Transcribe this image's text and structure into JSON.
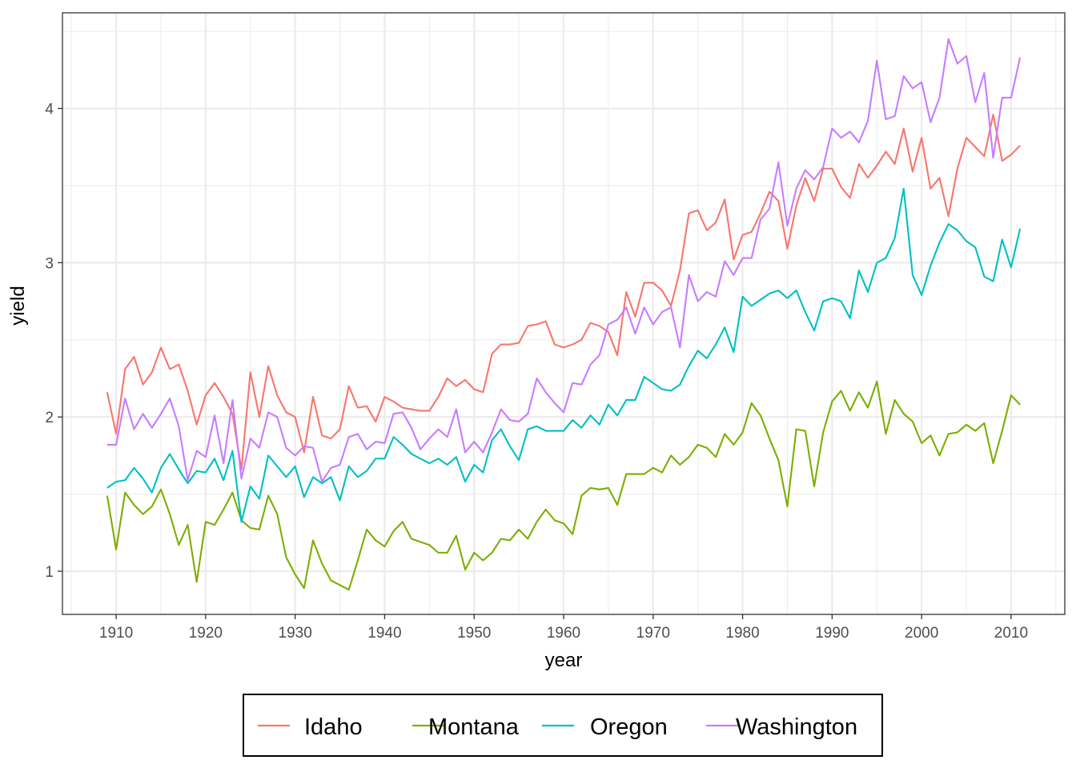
{
  "chart_data": {
    "type": "line",
    "title": "",
    "xlabel": "year",
    "ylabel": "yield",
    "xlim": [
      1904,
      2016
    ],
    "ylim": [
      0.72,
      4.62
    ],
    "x_ticks": [
      1910,
      1920,
      1930,
      1940,
      1950,
      1960,
      1970,
      1980,
      1990,
      2000,
      2010
    ],
    "y_ticks": [
      1,
      2,
      3,
      4
    ],
    "grid": true,
    "legend_position": "bottom",
    "x": [
      1909,
      1910,
      1911,
      1912,
      1913,
      1914,
      1915,
      1916,
      1917,
      1918,
      1919,
      1920,
      1921,
      1922,
      1923,
      1924,
      1925,
      1926,
      1927,
      1928,
      1929,
      1930,
      1931,
      1932,
      1933,
      1934,
      1935,
      1936,
      1937,
      1938,
      1939,
      1940,
      1941,
      1942,
      1943,
      1944,
      1945,
      1946,
      1947,
      1948,
      1949,
      1950,
      1951,
      1952,
      1953,
      1954,
      1955,
      1956,
      1957,
      1958,
      1959,
      1960,
      1961,
      1962,
      1963,
      1964,
      1965,
      1966,
      1967,
      1968,
      1969,
      1970,
      1971,
      1972,
      1973,
      1974,
      1975,
      1976,
      1977,
      1978,
      1979,
      1980,
      1981,
      1982,
      1983,
      1984,
      1985,
      1986,
      1987,
      1988,
      1989,
      1990,
      1991,
      1992,
      1993,
      1994,
      1995,
      1996,
      1997,
      1998,
      1999,
      2000,
      2001,
      2002,
      2003,
      2004,
      2005,
      2006,
      2007,
      2008,
      2009,
      2010,
      2011
    ],
    "series": [
      {
        "name": "Idaho",
        "color": "#F8766D",
        "values": [
          2.16,
          1.89,
          2.31,
          2.39,
          2.21,
          2.29,
          2.45,
          2.31,
          2.34,
          2.17,
          1.95,
          2.14,
          2.22,
          2.13,
          2.02,
          1.66,
          2.29,
          2.0,
          2.33,
          2.14,
          2.03,
          2.0,
          1.77,
          2.13,
          1.88,
          1.86,
          1.92,
          2.2,
          2.06,
          2.07,
          1.97,
          2.13,
          2.1,
          2.06,
          2.05,
          2.04,
          2.04,
          2.13,
          2.25,
          2.2,
          2.24,
          2.18,
          2.16,
          2.41,
          2.47,
          2.47,
          2.48,
          2.59,
          2.6,
          2.62,
          2.47,
          2.45,
          2.47,
          2.5,
          2.61,
          2.59,
          2.55,
          2.4,
          2.81,
          2.65,
          2.87,
          2.87,
          2.82,
          2.72,
          2.95,
          3.32,
          3.34,
          3.21,
          3.26,
          3.41,
          3.02,
          3.18,
          3.2,
          3.32,
          3.46,
          3.4,
          3.09,
          3.37,
          3.55,
          3.4,
          3.61,
          3.61,
          3.49,
          3.42,
          3.64,
          3.55,
          3.63,
          3.72,
          3.64,
          3.87,
          3.59,
          3.81,
          3.48,
          3.55,
          3.3,
          3.61,
          3.81,
          3.75,
          3.69,
          3.96,
          3.66,
          3.7,
          3.76
        ]
      },
      {
        "name": "Montana",
        "color": "#7CAE00",
        "values": [
          1.49,
          1.14,
          1.51,
          1.43,
          1.37,
          1.42,
          1.53,
          1.37,
          1.17,
          1.3,
          0.93,
          1.32,
          1.3,
          1.4,
          1.51,
          1.33,
          1.28,
          1.27,
          1.49,
          1.37,
          1.09,
          0.98,
          0.89,
          1.2,
          1.05,
          0.94,
          0.91,
          0.88,
          1.07,
          1.27,
          1.2,
          1.16,
          1.26,
          1.32,
          1.21,
          1.19,
          1.17,
          1.12,
          1.12,
          1.23,
          1.01,
          1.12,
          1.07,
          1.12,
          1.21,
          1.2,
          1.27,
          1.21,
          1.32,
          1.4,
          1.33,
          1.31,
          1.24,
          1.49,
          1.54,
          1.53,
          1.54,
          1.43,
          1.63,
          1.63,
          1.63,
          1.67,
          1.64,
          1.75,
          1.69,
          1.74,
          1.82,
          1.8,
          1.74,
          1.89,
          1.82,
          1.9,
          2.09,
          2.01,
          1.86,
          1.72,
          1.42,
          1.92,
          1.91,
          1.55,
          1.9,
          2.1,
          2.17,
          2.04,
          2.16,
          2.06,
          2.23,
          1.89,
          2.11,
          2.02,
          1.97,
          1.83,
          1.88,
          1.75,
          1.89,
          1.9,
          1.95,
          1.91,
          1.96,
          1.7,
          1.91,
          2.14,
          2.08
        ]
      },
      {
        "name": "Oregon",
        "color": "#00BFC4",
        "values": [
          1.54,
          1.58,
          1.59,
          1.67,
          1.6,
          1.51,
          1.67,
          1.76,
          1.66,
          1.57,
          1.65,
          1.64,
          1.73,
          1.59,
          1.78,
          1.32,
          1.55,
          1.47,
          1.75,
          1.68,
          1.61,
          1.68,
          1.48,
          1.61,
          1.57,
          1.61,
          1.46,
          1.68,
          1.61,
          1.65,
          1.73,
          1.73,
          1.87,
          1.82,
          1.76,
          1.73,
          1.7,
          1.73,
          1.69,
          1.74,
          1.58,
          1.69,
          1.64,
          1.85,
          1.92,
          1.81,
          1.72,
          1.92,
          1.94,
          1.91,
          1.91,
          1.91,
          1.98,
          1.93,
          2.01,
          1.95,
          2.08,
          2.01,
          2.11,
          2.11,
          2.26,
          2.22,
          2.18,
          2.17,
          2.21,
          2.33,
          2.43,
          2.38,
          2.47,
          2.58,
          2.42,
          2.78,
          2.72,
          2.76,
          2.8,
          2.82,
          2.77,
          2.82,
          2.68,
          2.56,
          2.75,
          2.77,
          2.75,
          2.64,
          2.95,
          2.81,
          3.0,
          3.03,
          3.16,
          3.48,
          2.92,
          2.79,
          2.98,
          3.13,
          3.25,
          3.21,
          3.14,
          3.1,
          2.91,
          2.88,
          3.15,
          2.97,
          3.22
        ]
      },
      {
        "name": "Washington",
        "color": "#C77CFF",
        "values": [
          1.82,
          1.82,
          2.12,
          1.92,
          2.02,
          1.93,
          2.02,
          2.12,
          1.94,
          1.59,
          1.78,
          1.74,
          2.01,
          1.7,
          2.11,
          1.6,
          1.86,
          1.8,
          2.03,
          2.0,
          1.8,
          1.75,
          1.81,
          1.8,
          1.58,
          1.67,
          1.69,
          1.87,
          1.89,
          1.79,
          1.84,
          1.83,
          2.02,
          2.03,
          1.93,
          1.79,
          1.86,
          1.92,
          1.87,
          2.05,
          1.77,
          1.84,
          1.77,
          1.9,
          2.05,
          1.98,
          1.97,
          2.02,
          2.25,
          2.16,
          2.09,
          2.03,
          2.22,
          2.21,
          2.34,
          2.4,
          2.6,
          2.63,
          2.71,
          2.54,
          2.71,
          2.6,
          2.68,
          2.71,
          2.45,
          2.92,
          2.75,
          2.81,
          2.78,
          3.01,
          2.92,
          3.03,
          3.03,
          3.28,
          3.35,
          3.65,
          3.24,
          3.48,
          3.6,
          3.54,
          3.62,
          3.87,
          3.81,
          3.85,
          3.78,
          3.92,
          4.31,
          3.93,
          3.95,
          4.21,
          4.13,
          4.17,
          3.91,
          4.07,
          4.45,
          4.29,
          4.34,
          4.04,
          4.23,
          3.68,
          4.07,
          4.07,
          4.33
        ]
      }
    ]
  }
}
